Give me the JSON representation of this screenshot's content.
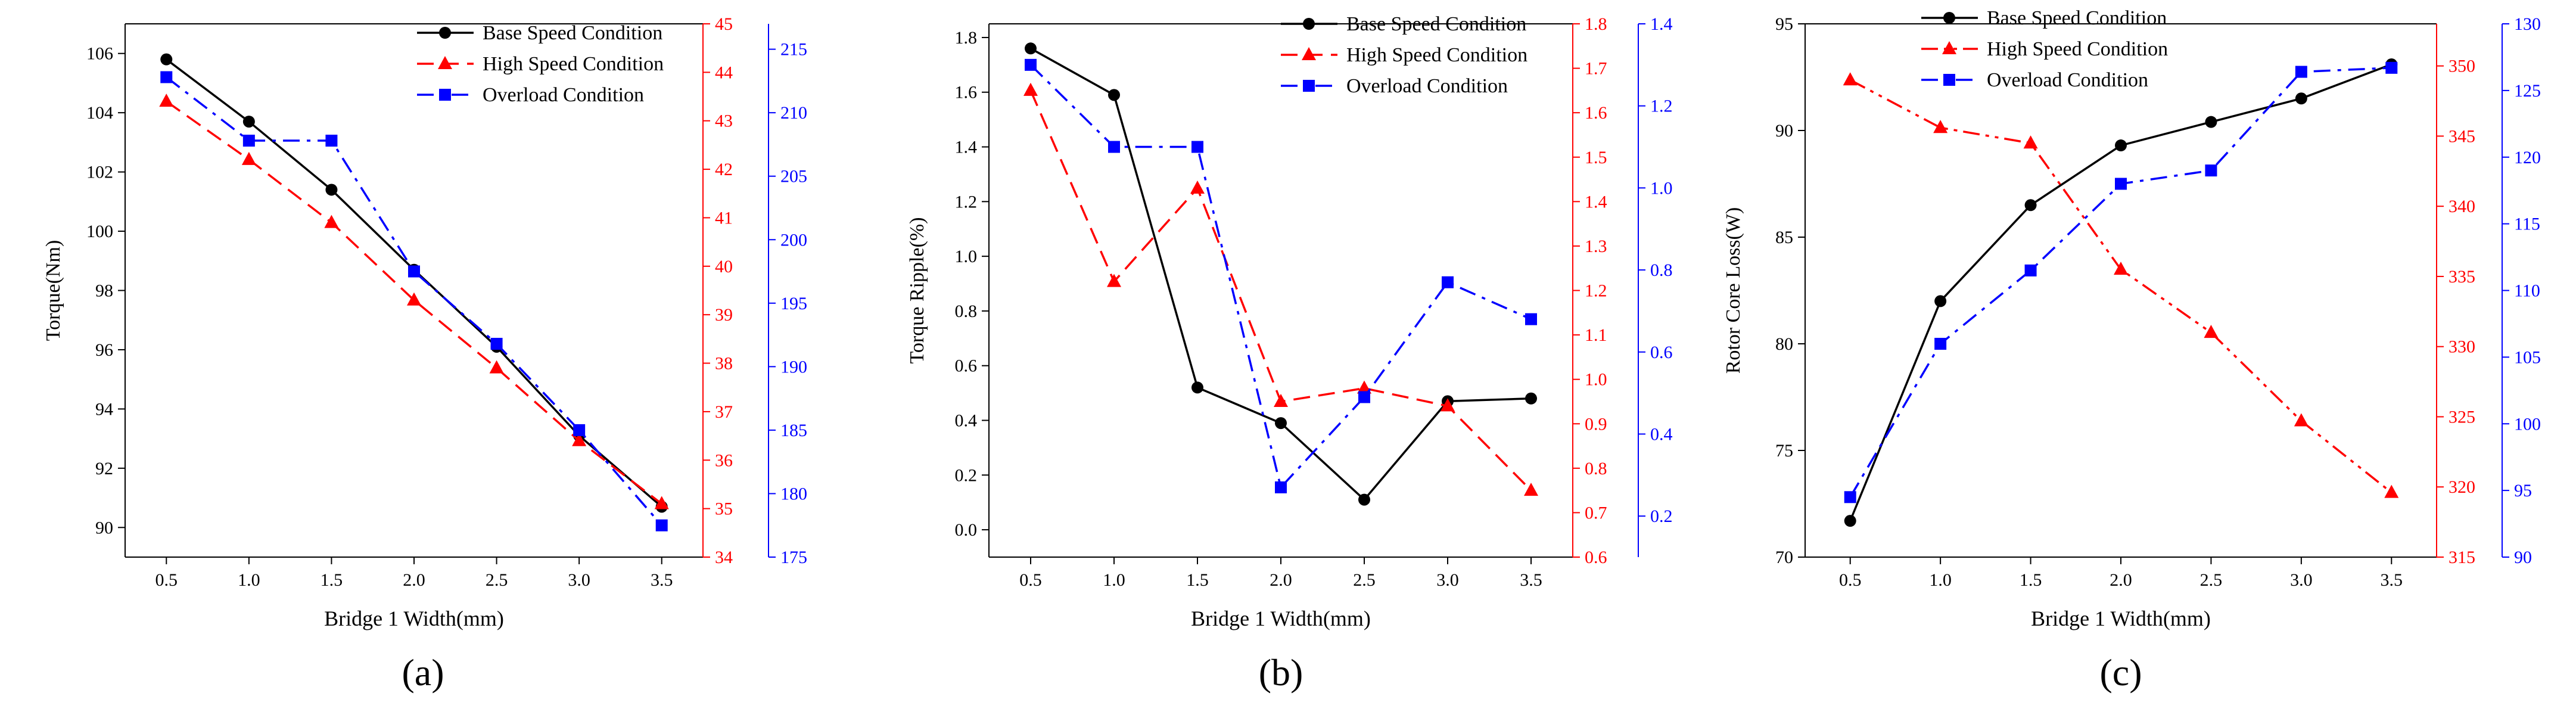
{
  "chart_data": [
    {
      "type": "line",
      "panel_label": "(a)",
      "xlabel": "Bridge 1 Width(mm)",
      "ylabel": "Torque(Nm)",
      "x": [
        0.5,
        1.0,
        1.5,
        2.0,
        2.5,
        3.0,
        3.5
      ],
      "x_ticks": [
        "0.5",
        "1.0",
        "1.5",
        "2.0",
        "2.5",
        "3.0",
        "3.5"
      ],
      "xlim": [
        0.25,
        3.75
      ],
      "axes": [
        {
          "id": "left",
          "color": "#000000",
          "ylim": [
            89,
            107
          ],
          "ticks": [
            "90",
            "92",
            "94",
            "96",
            "98",
            "100",
            "102",
            "104",
            "106"
          ]
        },
        {
          "id": "right1",
          "color": "#ff0000",
          "ylim": [
            34,
            45
          ],
          "ticks": [
            "34",
            "35",
            "36",
            "37",
            "38",
            "39",
            "40",
            "41",
            "42",
            "43",
            "44",
            "45"
          ]
        },
        {
          "id": "right2",
          "color": "#0000ff",
          "ylim": [
            175,
            217
          ],
          "ticks": [
            "175",
            "180",
            "185",
            "190",
            "195",
            "200",
            "205",
            "210",
            "215"
          ]
        }
      ],
      "series": [
        {
          "name": "Base Speed Condition",
          "axis": "left",
          "color": "#000000",
          "dash": "solid",
          "marker": "circle",
          "values": [
            105.8,
            103.7,
            101.4,
            98.7,
            96.1,
            93.1,
            90.7
          ]
        },
        {
          "name": "High Speed Condition",
          "axis": "right1",
          "color": "#ff0000",
          "dash": "dash",
          "marker": "triangle",
          "values": [
            43.4,
            42.2,
            40.9,
            39.3,
            37.9,
            36.4,
            35.1
          ]
        },
        {
          "name": "Overload Condition",
          "axis": "right2",
          "color": "#0000ff",
          "dash": "dashdot",
          "marker": "square",
          "values": [
            212.8,
            207.8,
            207.8,
            197.5,
            191.8,
            185.0,
            177.5
          ]
        }
      ],
      "legend": "top-right"
    },
    {
      "type": "line",
      "panel_label": "(b)",
      "xlabel": "Bridge 1 Width(mm)",
      "ylabel": "Torque Ripple(%)",
      "x": [
        0.5,
        1.0,
        1.5,
        2.0,
        2.5,
        3.0,
        3.5
      ],
      "x_ticks": [
        "0.5",
        "1.0",
        "1.5",
        "2.0",
        "2.5",
        "3.0",
        "3.5"
      ],
      "xlim": [
        0.25,
        3.75
      ],
      "axes": [
        {
          "id": "left",
          "color": "#000000",
          "ylim": [
            -0.1,
            1.85
          ],
          "ticks": [
            "0.0",
            "0.2",
            "0.4",
            "0.6",
            "0.8",
            "1.0",
            "1.2",
            "1.4",
            "1.6",
            "1.8"
          ]
        },
        {
          "id": "right1",
          "color": "#ff0000",
          "ylim": [
            0.6,
            1.8
          ],
          "ticks": [
            "0.6",
            "0.7",
            "0.8",
            "0.9",
            "1.0",
            "1.1",
            "1.2",
            "1.3",
            "1.4",
            "1.5",
            "1.6",
            "1.7",
            "1.8"
          ]
        },
        {
          "id": "right2",
          "color": "#0000ff",
          "ylim": [
            0.1,
            1.4
          ],
          "ticks": [
            "0.2",
            "0.4",
            "0.6",
            "0.8",
            "1.0",
            "1.2",
            "1.4"
          ]
        }
      ],
      "series": [
        {
          "name": "Base Speed Condition",
          "axis": "left",
          "color": "#000000",
          "dash": "solid",
          "marker": "circle",
          "values": [
            1.76,
            1.59,
            0.52,
            0.39,
            0.11,
            0.47,
            0.48
          ]
        },
        {
          "name": "High Speed Condition",
          "axis": "right1",
          "color": "#ff0000",
          "dash": "dash",
          "marker": "triangle",
          "values": [
            1.65,
            1.22,
            1.43,
            0.95,
            0.98,
            0.94,
            0.75
          ]
        },
        {
          "name": "Overload Condition",
          "axis": "right2",
          "color": "#0000ff",
          "dash": "dashdot",
          "marker": "square",
          "values": [
            1.3,
            1.1,
            1.1,
            0.27,
            0.49,
            0.77,
            0.68
          ]
        }
      ],
      "legend": "top-right"
    },
    {
      "type": "line",
      "panel_label": "(c)",
      "xlabel": "Bridge 1 Width(mm)",
      "ylabel": "Rotor Core Loss(W)",
      "x": [
        0.5,
        1.0,
        1.5,
        2.0,
        2.5,
        3.0,
        3.5
      ],
      "x_ticks": [
        "0.5",
        "1.0",
        "1.5",
        "2.0",
        "2.5",
        "3.0",
        "3.5"
      ],
      "xlim": [
        0.25,
        3.75
      ],
      "axes": [
        {
          "id": "left",
          "color": "#000000",
          "ylim": [
            70,
            95
          ],
          "ticks": [
            "70",
            "75",
            "80",
            "85",
            "90",
            "95"
          ]
        },
        {
          "id": "right1",
          "color": "#ff0000",
          "ylim": [
            315,
            353
          ],
          "ticks": [
            "315",
            "320",
            "325",
            "330",
            "335",
            "340",
            "345",
            "350"
          ]
        },
        {
          "id": "right2",
          "color": "#0000ff",
          "ylim": [
            90,
            130
          ],
          "ticks": [
            "90",
            "95",
            "100",
            "105",
            "110",
            "115",
            "120",
            "125",
            "130"
          ]
        }
      ],
      "series": [
        {
          "name": "Base Speed Condition",
          "axis": "left",
          "color": "#000000",
          "dash": "solid",
          "marker": "circle",
          "values": [
            71.7,
            82.0,
            86.5,
            89.3,
            90.4,
            91.5,
            93.1
          ]
        },
        {
          "name": "High Speed Condition",
          "axis": "right1",
          "color": "#ff0000",
          "dash": "dashdotdot",
          "marker": "triangle",
          "values": [
            349.0,
            345.6,
            344.5,
            335.5,
            331.0,
            324.7,
            319.6
          ]
        },
        {
          "name": "Overload Condition",
          "axis": "right2",
          "color": "#0000ff",
          "dash": "dashdot",
          "marker": "square",
          "values": [
            94.5,
            106.0,
            111.5,
            118.0,
            119.0,
            126.4,
            126.7
          ]
        }
      ],
      "legend": "top-left"
    }
  ]
}
